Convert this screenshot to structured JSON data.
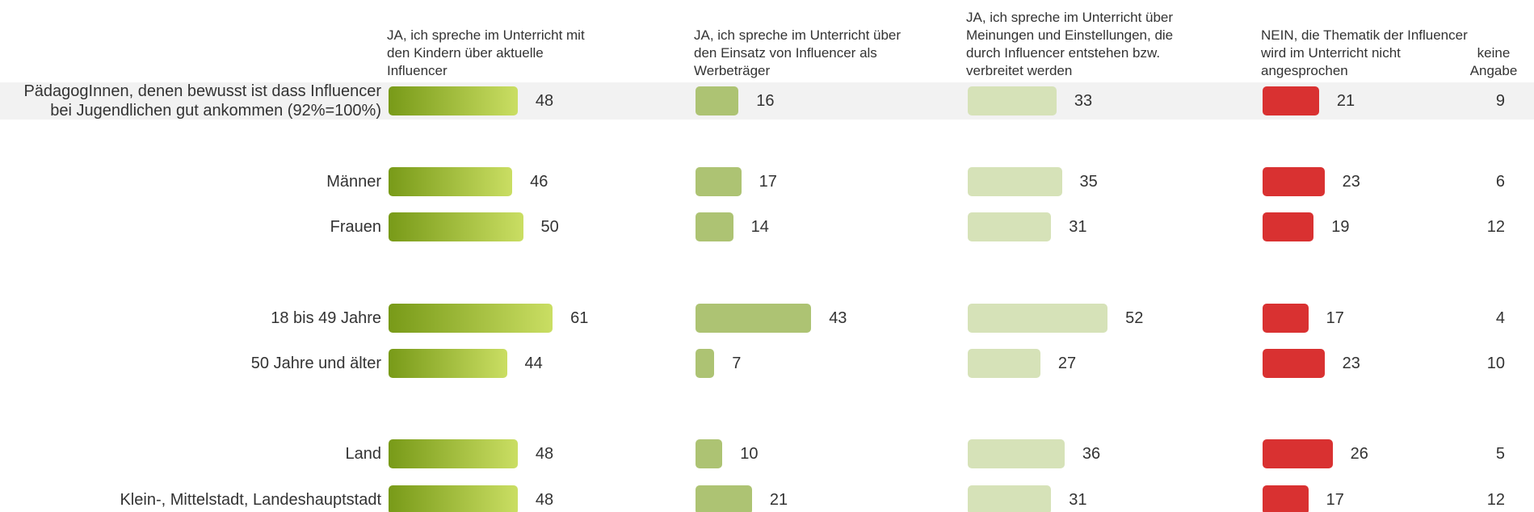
{
  "chart_data": {
    "type": "bar",
    "orientation": "horizontal",
    "categories": [
      "PädagogInnen, denen bewusst ist dass Influencer bei Jugendlichen gut ankommen (92%=100%)",
      "Männer",
      "Frauen",
      "18 bis 49 Jahre",
      "50 Jahre und älter",
      "Land",
      "Klein-, Mittelstadt, Landeshauptstadt"
    ],
    "series": [
      {
        "name": "JA, ich spreche im Unterricht mit den Kindern über aktuelle Influencer",
        "gradient": [
          "#789a18",
          "#cade63"
        ],
        "values": [
          48,
          46,
          50,
          61,
          44,
          48,
          48
        ]
      },
      {
        "name": "JA, ich spreche im Unterricht über den Einsatz von Influencer als Werbeträger",
        "color": "#adc373",
        "values": [
          16,
          17,
          14,
          43,
          7,
          10,
          21
        ]
      },
      {
        "name": "JA, ich spreche im Unterricht über Meinungen und Einstellungen, die durch Influencer entstehen bzw. verbreitet werden",
        "color": "#d6e2b8",
        "values": [
          33,
          35,
          31,
          52,
          27,
          36,
          31
        ]
      },
      {
        "name": "NEIN, die Thematik der Influencer wird im Unterricht nicht angesprochen",
        "color": "#d93131",
        "values": [
          21,
          23,
          19,
          17,
          23,
          26,
          17
        ]
      },
      {
        "name": "keine Angabe",
        "values": [
          9,
          6,
          12,
          4,
          10,
          5,
          12
        ]
      }
    ]
  }
}
